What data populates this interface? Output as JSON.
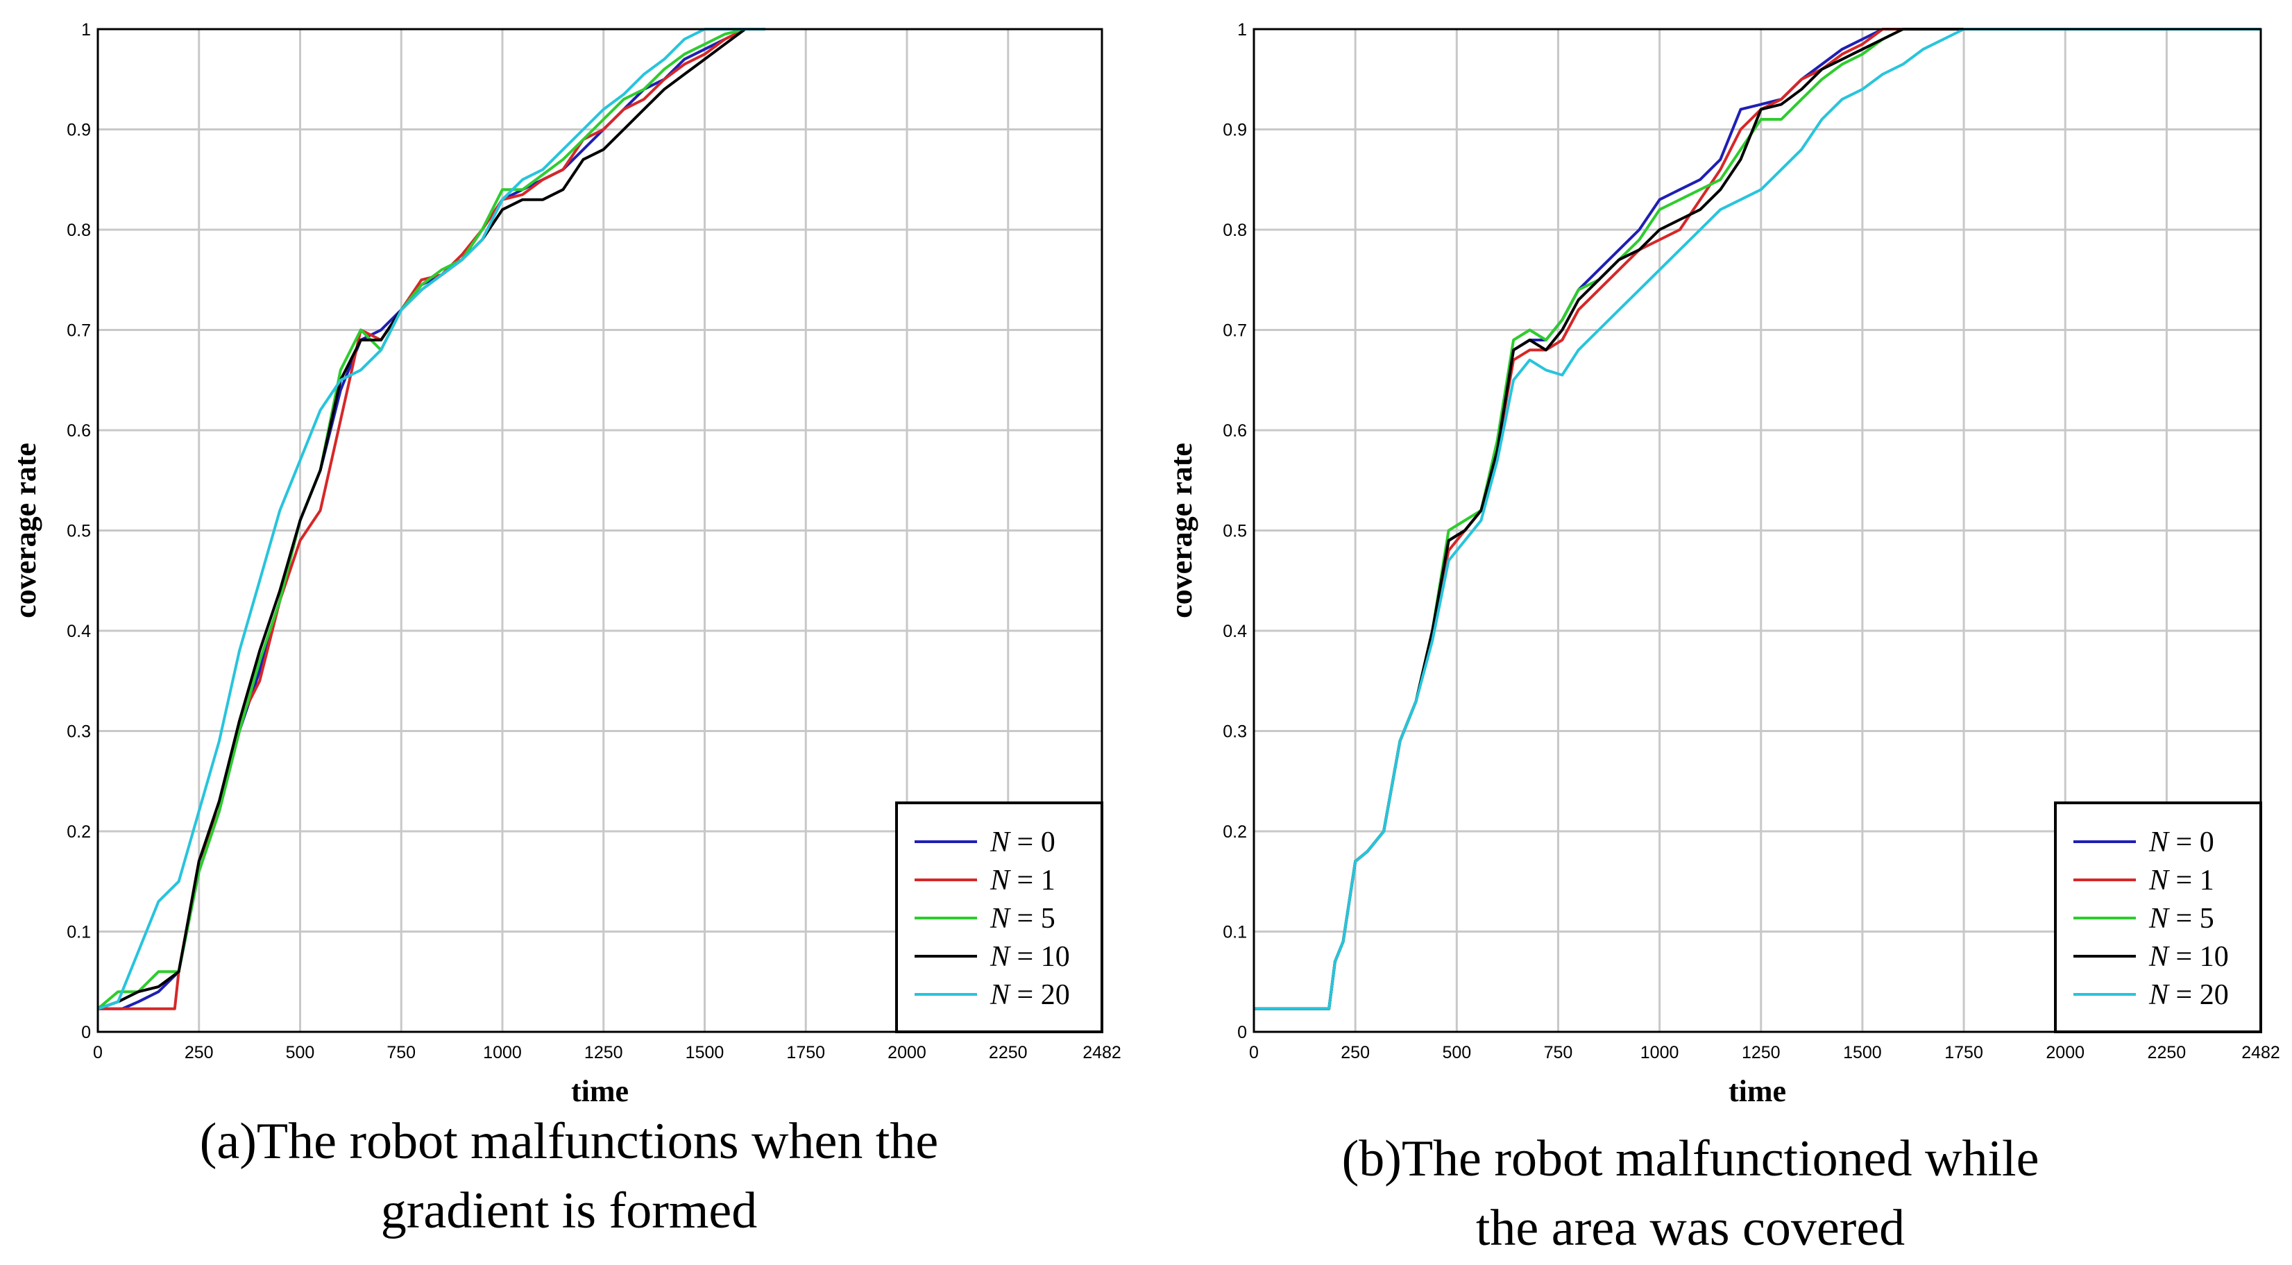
{
  "chart_data": [
    {
      "type": "line",
      "panel": "a",
      "caption_line1": "(a)The robot malfunctions when the",
      "caption_line2": "gradient is formed",
      "xlabel": "time",
      "ylabel": "coverage rate",
      "xlim": [
        0,
        2482
      ],
      "ylim": [
        0,
        1
      ],
      "xticks": [
        "0",
        "250",
        "500",
        "750",
        "1000",
        "1250",
        "1500",
        "1750",
        "2000",
        "2250",
        "2482"
      ],
      "xtick_values": [
        0,
        250,
        500,
        750,
        1000,
        1250,
        1500,
        1750,
        2000,
        2250,
        2482
      ],
      "yticks": [
        "0",
        "0.1",
        "0.2",
        "0.3",
        "0.4",
        "0.5",
        "0.6",
        "0.7",
        "0.8",
        "0.9",
        "1"
      ],
      "ytick_values": [
        0,
        0.1,
        0.2,
        0.3,
        0.4,
        0.5,
        0.6,
        0.7,
        0.8,
        0.9,
        1
      ],
      "grid": true,
      "legend_position": "bottom-right",
      "series": [
        {
          "name": "N = 0",
          "var": "N",
          "rest": " = 0",
          "color": "#1f1fb4",
          "x": [
            0,
            60,
            100,
            150,
            200,
            250,
            300,
            350,
            400,
            450,
            500,
            550,
            600,
            650,
            700,
            750,
            800,
            850,
            900,
            950,
            1000,
            1050,
            1100,
            1150,
            1200,
            1250,
            1300,
            1350,
            1400,
            1450,
            1500,
            1550,
            1600,
            1650
          ],
          "y": [
            0.023,
            0.023,
            0.03,
            0.04,
            0.06,
            0.16,
            0.22,
            0.3,
            0.36,
            0.43,
            0.51,
            0.56,
            0.64,
            0.69,
            0.7,
            0.72,
            0.745,
            0.755,
            0.77,
            0.8,
            0.83,
            0.84,
            0.85,
            0.86,
            0.88,
            0.9,
            0.92,
            0.94,
            0.95,
            0.97,
            0.98,
            0.99,
            1.0,
            1.0
          ]
        },
        {
          "name": "N = 1",
          "var": "N",
          "rest": " = 1",
          "color": "#d62728",
          "x": [
            0,
            100,
            150,
            190,
            200,
            250,
            300,
            350,
            400,
            450,
            500,
            550,
            600,
            650,
            700,
            750,
            800,
            850,
            900,
            950,
            1000,
            1050,
            1100,
            1150,
            1200,
            1250,
            1300,
            1350,
            1400,
            1450,
            1500,
            1550,
            1600,
            1650
          ],
          "y": [
            0.023,
            0.023,
            0.023,
            0.023,
            0.06,
            0.17,
            0.22,
            0.31,
            0.35,
            0.43,
            0.49,
            0.52,
            0.61,
            0.7,
            0.69,
            0.72,
            0.75,
            0.755,
            0.775,
            0.8,
            0.83,
            0.835,
            0.85,
            0.86,
            0.89,
            0.9,
            0.92,
            0.93,
            0.95,
            0.965,
            0.975,
            0.99,
            1.0,
            1.0
          ]
        },
        {
          "name": "N = 5",
          "var": "N",
          "rest": " = 5",
          "color": "#2ecc2e",
          "x": [
            0,
            50,
            100,
            150,
            200,
            250,
            300,
            350,
            400,
            450,
            500,
            550,
            600,
            650,
            700,
            750,
            800,
            850,
            900,
            950,
            1000,
            1050,
            1100,
            1150,
            1200,
            1250,
            1300,
            1350,
            1400,
            1450,
            1500,
            1550,
            1600,
            1650
          ],
          "y": [
            0.023,
            0.04,
            0.04,
            0.06,
            0.06,
            0.16,
            0.22,
            0.3,
            0.37,
            0.43,
            0.51,
            0.56,
            0.66,
            0.7,
            0.68,
            0.72,
            0.745,
            0.76,
            0.77,
            0.8,
            0.84,
            0.84,
            0.855,
            0.87,
            0.89,
            0.91,
            0.93,
            0.94,
            0.96,
            0.975,
            0.985,
            0.995,
            1.0,
            1.0
          ]
        },
        {
          "name": "N = 10",
          "var": "N",
          "rest": " = 10",
          "color": "#000000",
          "x": [
            0,
            50,
            100,
            150,
            200,
            250,
            300,
            350,
            400,
            450,
            500,
            550,
            600,
            650,
            700,
            750,
            800,
            850,
            900,
            950,
            1000,
            1050,
            1100,
            1150,
            1200,
            1250,
            1300,
            1350,
            1400,
            1450,
            1500,
            1550,
            1600,
            1650
          ],
          "y": [
            0.023,
            0.03,
            0.04,
            0.045,
            0.06,
            0.17,
            0.23,
            0.31,
            0.38,
            0.44,
            0.51,
            0.56,
            0.65,
            0.69,
            0.69,
            0.72,
            0.74,
            0.755,
            0.77,
            0.79,
            0.82,
            0.83,
            0.83,
            0.84,
            0.87,
            0.88,
            0.9,
            0.92,
            0.94,
            0.955,
            0.97,
            0.985,
            1.0,
            1.0
          ]
        },
        {
          "name": "N = 20",
          "var": "N",
          "rest": " = 20",
          "color": "#28c4dc",
          "x": [
            0,
            50,
            100,
            150,
            200,
            250,
            300,
            350,
            400,
            450,
            500,
            550,
            600,
            650,
            700,
            750,
            800,
            850,
            900,
            950,
            1000,
            1050,
            1100,
            1150,
            1200,
            1250,
            1300,
            1350,
            1400,
            1450,
            1500,
            1550,
            1600,
            1650
          ],
          "y": [
            0.023,
            0.03,
            0.08,
            0.13,
            0.15,
            0.22,
            0.29,
            0.38,
            0.45,
            0.52,
            0.57,
            0.62,
            0.65,
            0.66,
            0.68,
            0.72,
            0.74,
            0.755,
            0.77,
            0.79,
            0.83,
            0.85,
            0.86,
            0.88,
            0.9,
            0.92,
            0.935,
            0.955,
            0.97,
            0.99,
            1.0,
            1.0,
            1.0,
            1.0
          ]
        }
      ]
    },
    {
      "type": "line",
      "panel": "b",
      "caption_line1": "(b)The robot malfunctioned while",
      "caption_line2": "the area was covered",
      "xlabel": "time",
      "ylabel": "coverage rate",
      "xlim": [
        0,
        2482
      ],
      "ylim": [
        0,
        1
      ],
      "xticks": [
        "0",
        "250",
        "500",
        "750",
        "1000",
        "1250",
        "1500",
        "1750",
        "2000",
        "2250",
        "2482"
      ],
      "xtick_values": [
        0,
        250,
        500,
        750,
        1000,
        1250,
        1500,
        1750,
        2000,
        2250,
        2482
      ],
      "yticks": [
        "0",
        "0.1",
        "0.2",
        "0.3",
        "0.4",
        "0.5",
        "0.6",
        "0.7",
        "0.8",
        "0.9",
        "1"
      ],
      "ytick_values": [
        0,
        0.1,
        0.2,
        0.3,
        0.4,
        0.5,
        0.6,
        0.7,
        0.8,
        0.9,
        1
      ],
      "grid": true,
      "legend_position": "bottom-right",
      "series": [
        {
          "name": "N = 0",
          "var": "N",
          "rest": " = 0",
          "color": "#1f1fb4",
          "x": [
            0,
            100,
            185,
            200,
            220,
            250,
            280,
            320,
            360,
            400,
            440,
            480,
            520,
            560,
            600,
            640,
            680,
            720,
            760,
            800,
            850,
            900,
            950,
            1000,
            1050,
            1100,
            1150,
            1200,
            1250,
            1300,
            1350,
            1400,
            1450,
            1500,
            1550,
            1600,
            2482
          ],
          "y": [
            0.023,
            0.023,
            0.023,
            0.07,
            0.09,
            0.17,
            0.18,
            0.2,
            0.29,
            0.33,
            0.4,
            0.49,
            0.5,
            0.52,
            0.58,
            0.68,
            0.69,
            0.69,
            0.71,
            0.74,
            0.76,
            0.78,
            0.8,
            0.83,
            0.84,
            0.85,
            0.87,
            0.92,
            0.925,
            0.93,
            0.95,
            0.965,
            0.98,
            0.99,
            1.0,
            1.0,
            1.0
          ]
        },
        {
          "name": "N = 1",
          "var": "N",
          "rest": " = 1",
          "color": "#d62728",
          "x": [
            0,
            100,
            185,
            200,
            220,
            250,
            280,
            320,
            360,
            400,
            440,
            480,
            520,
            560,
            600,
            640,
            680,
            720,
            760,
            800,
            850,
            900,
            950,
            1000,
            1050,
            1100,
            1150,
            1200,
            1250,
            1300,
            1350,
            1400,
            1450,
            1500,
            1550,
            1600,
            2482
          ],
          "y": [
            0.023,
            0.023,
            0.023,
            0.07,
            0.09,
            0.17,
            0.18,
            0.2,
            0.29,
            0.33,
            0.4,
            0.48,
            0.5,
            0.52,
            0.58,
            0.67,
            0.68,
            0.68,
            0.69,
            0.72,
            0.74,
            0.76,
            0.78,
            0.79,
            0.8,
            0.83,
            0.86,
            0.9,
            0.92,
            0.93,
            0.95,
            0.96,
            0.975,
            0.985,
            1.0,
            1.0,
            1.0
          ]
        },
        {
          "name": "N = 5",
          "var": "N",
          "rest": " = 5",
          "color": "#2ecc2e",
          "x": [
            0,
            100,
            185,
            200,
            220,
            250,
            280,
            320,
            360,
            400,
            440,
            480,
            520,
            560,
            600,
            640,
            680,
            720,
            760,
            800,
            850,
            900,
            950,
            1000,
            1050,
            1100,
            1150,
            1200,
            1250,
            1300,
            1350,
            1400,
            1450,
            1500,
            1550,
            1600,
            1650,
            2482
          ],
          "y": [
            0.023,
            0.023,
            0.023,
            0.07,
            0.09,
            0.17,
            0.18,
            0.2,
            0.29,
            0.33,
            0.4,
            0.5,
            0.51,
            0.52,
            0.59,
            0.69,
            0.7,
            0.69,
            0.71,
            0.74,
            0.75,
            0.77,
            0.79,
            0.82,
            0.83,
            0.84,
            0.85,
            0.88,
            0.91,
            0.91,
            0.93,
            0.95,
            0.965,
            0.975,
            0.99,
            1.0,
            1.0,
            1.0
          ]
        },
        {
          "name": "N = 10",
          "var": "N",
          "rest": " = 10",
          "color": "#000000",
          "x": [
            0,
            100,
            185,
            200,
            220,
            250,
            280,
            320,
            360,
            400,
            440,
            480,
            520,
            560,
            600,
            640,
            680,
            720,
            760,
            800,
            850,
            900,
            950,
            1000,
            1050,
            1100,
            1150,
            1200,
            1250,
            1300,
            1350,
            1400,
            1450,
            1500,
            1550,
            1600,
            1650,
            2482
          ],
          "y": [
            0.023,
            0.023,
            0.023,
            0.07,
            0.09,
            0.17,
            0.18,
            0.2,
            0.29,
            0.33,
            0.4,
            0.49,
            0.5,
            0.52,
            0.58,
            0.68,
            0.69,
            0.68,
            0.7,
            0.73,
            0.75,
            0.77,
            0.78,
            0.8,
            0.81,
            0.82,
            0.84,
            0.87,
            0.92,
            0.925,
            0.94,
            0.96,
            0.97,
            0.98,
            0.99,
            1.0,
            1.0,
            1.0
          ]
        },
        {
          "name": "N = 20",
          "var": "N",
          "rest": " = 20",
          "color": "#28c4dc",
          "x": [
            0,
            100,
            185,
            200,
            220,
            250,
            280,
            320,
            360,
            400,
            440,
            480,
            520,
            560,
            600,
            640,
            680,
            720,
            760,
            800,
            850,
            900,
            950,
            1000,
            1050,
            1100,
            1150,
            1200,
            1250,
            1300,
            1350,
            1400,
            1450,
            1500,
            1550,
            1600,
            1650,
            1700,
            1750,
            2482
          ],
          "y": [
            0.023,
            0.023,
            0.023,
            0.07,
            0.09,
            0.17,
            0.18,
            0.2,
            0.29,
            0.33,
            0.39,
            0.47,
            0.49,
            0.51,
            0.57,
            0.65,
            0.67,
            0.66,
            0.655,
            0.68,
            0.7,
            0.72,
            0.74,
            0.76,
            0.78,
            0.8,
            0.82,
            0.83,
            0.84,
            0.86,
            0.88,
            0.91,
            0.93,
            0.94,
            0.955,
            0.965,
            0.98,
            0.99,
            1.0,
            1.0
          ]
        }
      ]
    }
  ]
}
